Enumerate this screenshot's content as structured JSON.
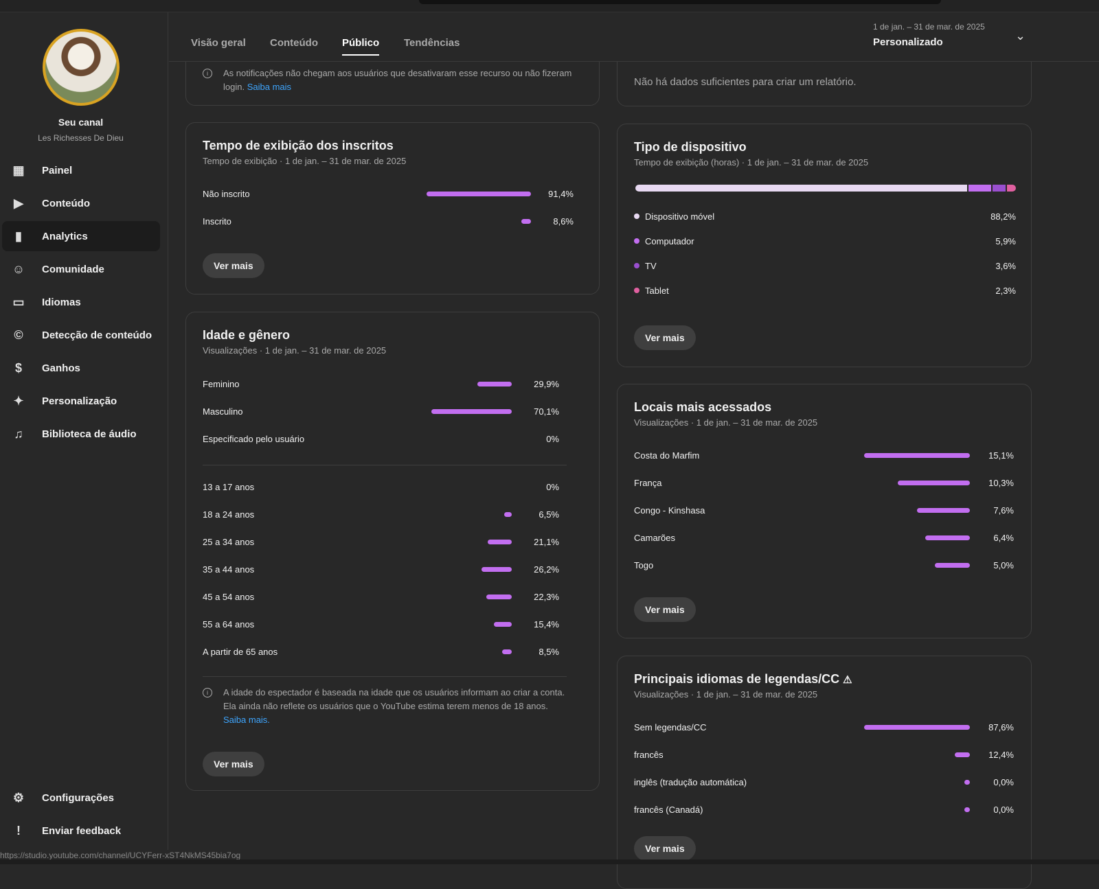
{
  "channel": {
    "title": "Seu canal",
    "name": "Les Richesses De Dieu"
  },
  "sidebar": {
    "items": [
      {
        "label": "Painel",
        "icon": "dashboard-icon"
      },
      {
        "label": "Conteúdo",
        "icon": "content-icon"
      },
      {
        "label": "Analytics",
        "icon": "analytics-icon",
        "active": true
      },
      {
        "label": "Comunidade",
        "icon": "community-icon"
      },
      {
        "label": "Idiomas",
        "icon": "subtitles-icon"
      },
      {
        "label": "Detecção de conteúdo",
        "icon": "copyright-icon"
      },
      {
        "label": "Ganhos",
        "icon": "dollar-icon"
      },
      {
        "label": "Personalização",
        "icon": "magic-wand-icon"
      },
      {
        "label": "Biblioteca de áudio",
        "icon": "audio-library-icon"
      }
    ],
    "bottom": [
      {
        "label": "Configurações",
        "icon": "gear-icon"
      },
      {
        "label": "Enviar feedback",
        "icon": "feedback-icon"
      }
    ]
  },
  "tabs": [
    "Visão geral",
    "Conteúdo",
    "Público",
    "Tendências"
  ],
  "active_tab": "Público",
  "date_range": {
    "range": "1 de jan. – 31 de mar. de 2025",
    "preset": "Personalizado"
  },
  "notif_card": {
    "note": "As notificações não chegam aos usuários que desativaram esse recurso ou não fizeram login.",
    "link": "Saiba mais"
  },
  "nodata_card": {
    "text": "Não há dados suficientes para criar um relatório."
  },
  "watch_subs": {
    "title": "Tempo de exibição dos inscritos",
    "subtitle": "Tempo de exibição · 1 de jan. – 31 de mar. de 2025",
    "rows": [
      {
        "label": "Não inscrito",
        "value": 91.4,
        "text": "91,4%"
      },
      {
        "label": "Inscrito",
        "value": 8.6,
        "text": "8,6%"
      }
    ],
    "button": "Ver mais"
  },
  "age_gender": {
    "title": "Idade e gênero",
    "subtitle": "Visualizações · 1 de jan. – 31 de mar. de 2025",
    "gender": [
      {
        "label": "Feminino",
        "value": 29.9,
        "text": "29,9%"
      },
      {
        "label": "Masculino",
        "value": 70.1,
        "text": "70,1%"
      },
      {
        "label": "Especificado pelo usuário",
        "value": 0,
        "text": "0%"
      }
    ],
    "age": [
      {
        "label": "13 a 17 anos",
        "value": 0,
        "text": "0%"
      },
      {
        "label": "18 a 24 anos",
        "value": 6.5,
        "text": "6,5%"
      },
      {
        "label": "25 a 34 anos",
        "value": 21.1,
        "text": "21,1%"
      },
      {
        "label": "35 a 44 anos",
        "value": 26.2,
        "text": "26,2%"
      },
      {
        "label": "45 a 54 anos",
        "value": 22.3,
        "text": "22,3%"
      },
      {
        "label": "55 a 64 anos",
        "value": 15.4,
        "text": "15,4%"
      },
      {
        "label": "A partir de 65 anos",
        "value": 8.5,
        "text": "8,5%"
      }
    ],
    "note": "A idade do espectador é baseada na idade que os usuários informam ao criar a conta. Ela ainda não reflete os usuários que o YouTube estima terem menos de 18 anos.",
    "link": "Saiba mais.",
    "button": "Ver mais"
  },
  "device": {
    "title": "Tipo de dispositivo",
    "subtitle": "Tempo de exibição (horas) · 1 de jan. – 31 de mar. de 2025",
    "rows": [
      {
        "label": "Dispositivo móvel",
        "value": 88.2,
        "text": "88,2%",
        "color": "#e8d9f2"
      },
      {
        "label": "Computador",
        "value": 5.9,
        "text": "5,9%",
        "color": "#c26ef0"
      },
      {
        "label": "TV",
        "value": 3.6,
        "text": "3,6%",
        "color": "#9a4fcf"
      },
      {
        "label": "Tablet",
        "value": 2.3,
        "text": "2,3%",
        "color": "#e060a0"
      }
    ],
    "button": "Ver mais"
  },
  "locations": {
    "title": "Locais mais acessados",
    "subtitle": "Visualizações · 1 de jan. – 31 de mar. de 2025",
    "rows": [
      {
        "label": "Costa do Marfim",
        "value": 15.1,
        "text": "15,1%"
      },
      {
        "label": "França",
        "value": 10.3,
        "text": "10,3%"
      },
      {
        "label": "Congo - Kinshasa",
        "value": 7.6,
        "text": "7,6%"
      },
      {
        "label": "Camarões",
        "value": 6.4,
        "text": "6,4%"
      },
      {
        "label": "Togo",
        "value": 5.0,
        "text": "5,0%"
      }
    ],
    "button": "Ver mais"
  },
  "subtitles": {
    "title": "Principais idiomas de legendas/CC",
    "subtitle": "Visualizações · 1 de jan. – 31 de mar. de 2025",
    "rows": [
      {
        "label": "Sem legendas/CC",
        "value": 87.6,
        "text": "87,6%"
      },
      {
        "label": "francês",
        "value": 12.4,
        "text": "12,4%"
      },
      {
        "label": "inglês (tradução automática)",
        "value": 0.0,
        "text": "0,0%"
      },
      {
        "label": "francês (Canadá)",
        "value": 0.0,
        "text": "0,0%"
      }
    ],
    "button": "Ver mais"
  },
  "colors": {
    "bar": "#c26ef0",
    "link": "#3ea6ff"
  },
  "status_url": "https://studio.youtube.com/channel/UCYFerr-xST4NkMS45bia7og"
}
